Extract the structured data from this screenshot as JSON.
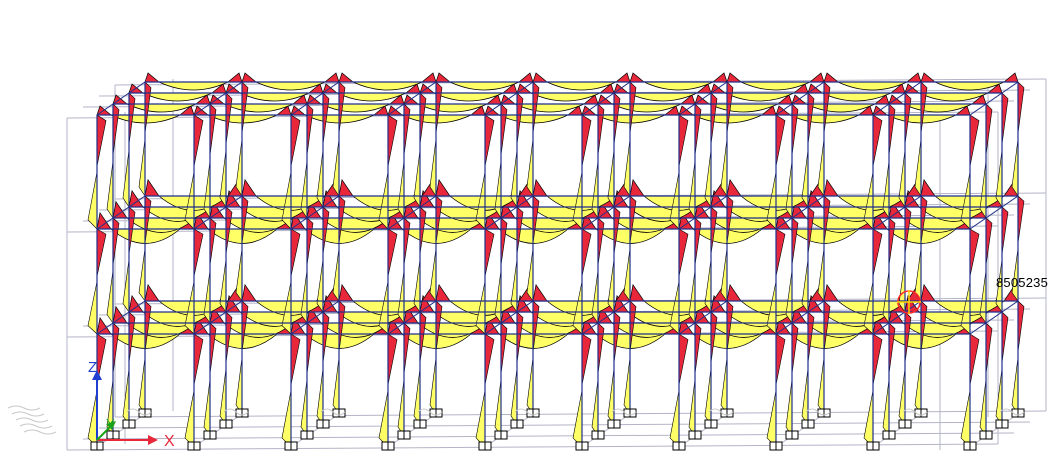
{
  "viewer": {
    "selected_value": "8505235",
    "axes": {
      "x": "X",
      "y": "Y",
      "z": "Z"
    },
    "colors": {
      "background": "#ffffff",
      "column": "#1f2f8a",
      "beam": "#1f2f8a",
      "grid": "#b4b4c8",
      "moment_positive": "#ffff66",
      "moment_negative": "#e8283a",
      "outline": "#000000",
      "x_axis": "#e8283a",
      "y_axis": "#1aa31a",
      "z_axis": "#1f3fd0",
      "cursor": "#ff2a2a",
      "cursor_cross": "#ffd400"
    },
    "model": {
      "bays_x": 9,
      "bays_y": 3,
      "levels": 3,
      "type": "3D frame moment diagram"
    }
  }
}
